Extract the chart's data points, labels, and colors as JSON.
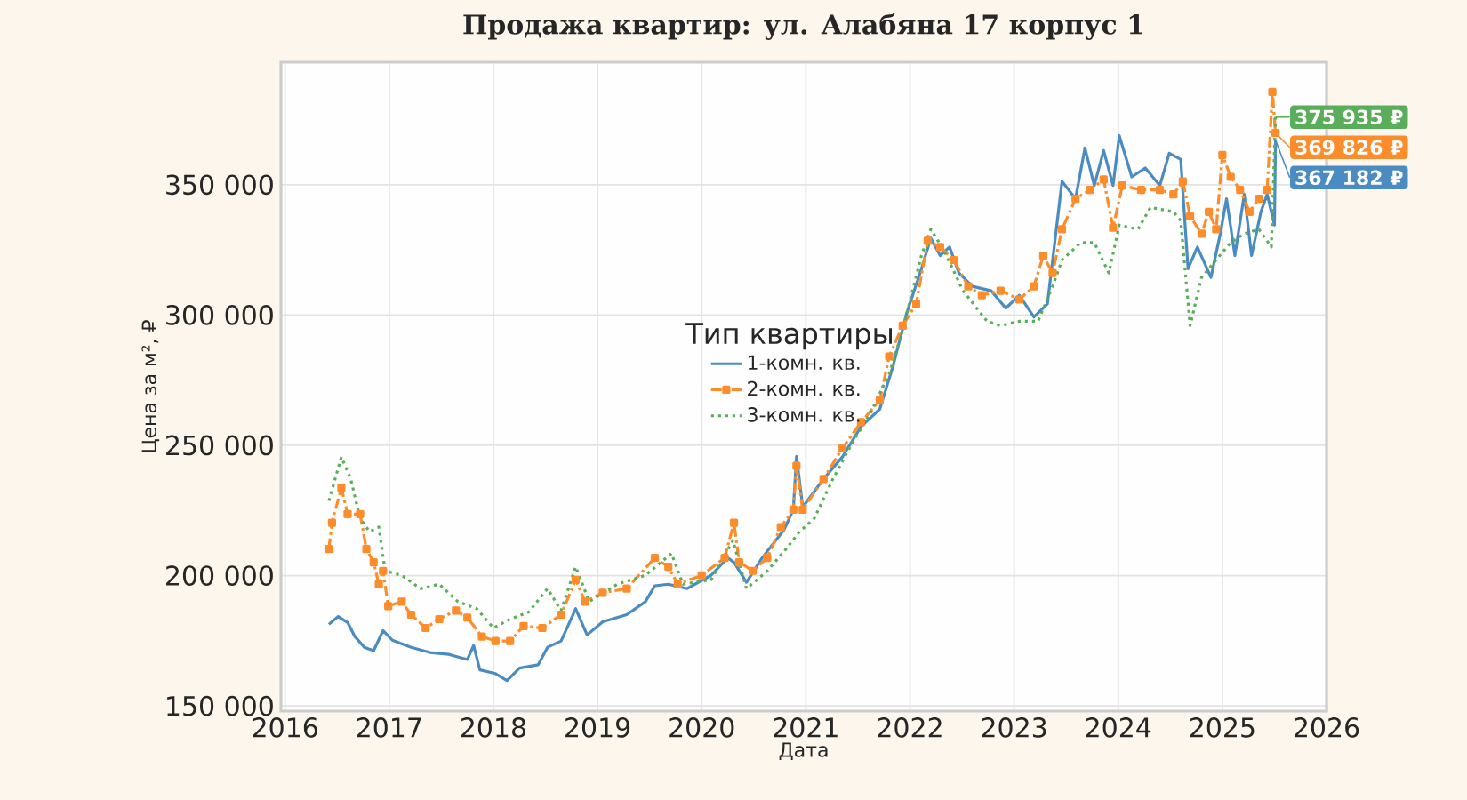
{
  "chart_data": {
    "type": "line",
    "title": "Продажа квартир: ул. Алабяна 17 корпус 1",
    "xlabel": "Дата",
    "ylabel": "Цена за м², ₽",
    "legend_title": "Тип квартиры",
    "legend": "center",
    "grid": true,
    "xlim": [
      2015.96,
      2026.0
    ],
    "xticks": [
      2016,
      2017,
      2018,
      2019,
      2020,
      2021,
      2022,
      2023,
      2024,
      2025,
      2026
    ],
    "ylim": [
      148000,
      397000
    ],
    "yticks": [
      {
        "value": 150000,
        "label": "150 000"
      },
      {
        "value": 200000,
        "label": "200 000"
      },
      {
        "value": 250000,
        "label": "250 000"
      },
      {
        "value": 300000,
        "label": "300 000"
      },
      {
        "value": 350000,
        "label": "350 000"
      }
    ],
    "series": [
      {
        "name": "1-комн. кв.",
        "color": "#4a8cc2",
        "line_style": "solid",
        "marker": "none",
        "x": [
          2016.42,
          2016.51,
          2016.6,
          2016.67,
          2016.76,
          2016.85,
          2016.94,
          2017.03,
          2017.21,
          2017.39,
          2017.57,
          2017.75,
          2017.81,
          2017.87,
          2018.02,
          2018.13,
          2018.25,
          2018.43,
          2018.52,
          2018.65,
          2018.79,
          2018.9,
          2019.05,
          2019.28,
          2019.46,
          2019.55,
          2019.68,
          2019.86,
          2020.09,
          2020.25,
          2020.31,
          2020.43,
          2020.58,
          2020.79,
          2020.88,
          2020.91,
          2020.97,
          2021.17,
          2021.35,
          2021.53,
          2021.71,
          2021.84,
          2021.97,
          2022.11,
          2022.2,
          2022.29,
          2022.38,
          2022.47,
          2022.6,
          2022.78,
          2022.92,
          2023.05,
          2023.19,
          2023.32,
          2023.41,
          2023.46,
          2023.59,
          2023.68,
          2023.77,
          2023.86,
          2023.95,
          2024.01,
          2024.13,
          2024.26,
          2024.4,
          2024.49,
          2024.6,
          2024.67,
          2024.76,
          2024.89,
          2024.98,
          2025.04,
          2025.12,
          2025.21,
          2025.28,
          2025.37,
          2025.43,
          2025.5,
          2025.51
        ],
        "values": [
          181300,
          184300,
          182000,
          176600,
          172500,
          171200,
          178900,
          175200,
          172500,
          170500,
          169800,
          167800,
          173200,
          163800,
          162400,
          159700,
          164500,
          165800,
          172500,
          174900,
          187300,
          177200,
          182300,
          185000,
          190000,
          196100,
          196700,
          195000,
          200100,
          206800,
          205100,
          197400,
          206800,
          217600,
          225300,
          245800,
          226300,
          237100,
          245500,
          257200,
          263900,
          280800,
          300900,
          317700,
          329500,
          322800,
          326100,
          316100,
          311000,
          309300,
          302600,
          307600,
          299200,
          304300,
          334500,
          351300,
          344600,
          364100,
          349700,
          363100,
          349700,
          368800,
          353000,
          356400,
          349700,
          362100,
          359700,
          317700,
          326100,
          314400,
          331200,
          344600,
          322800,
          346300,
          322800,
          339600,
          346300,
          334500,
          367182
        ]
      },
      {
        "name": "2-комн. кв.",
        "color": "#fd8c2a",
        "line_style": "dashed",
        "marker": "square",
        "x": [
          2016.42,
          2016.45,
          2016.54,
          2016.6,
          2016.72,
          2016.78,
          2016.85,
          2016.9,
          2016.94,
          2016.99,
          2017.12,
          2017.21,
          2017.35,
          2017.48,
          2017.64,
          2017.75,
          2017.89,
          2018.02,
          2018.16,
          2018.29,
          2018.47,
          2018.65,
          2018.79,
          2018.88,
          2019.05,
          2019.28,
          2019.55,
          2019.68,
          2019.77,
          2020.0,
          2020.22,
          2020.31,
          2020.36,
          2020.49,
          2020.63,
          2020.76,
          2020.88,
          2020.91,
          2020.97,
          2021.17,
          2021.35,
          2021.53,
          2021.71,
          2021.8,
          2021.93,
          2022.06,
          2022.17,
          2022.29,
          2022.42,
          2022.56,
          2022.69,
          2022.87,
          2023.05,
          2023.19,
          2023.28,
          2023.37,
          2023.46,
          2023.59,
          2023.73,
          2023.86,
          2023.95,
          2024.04,
          2024.22,
          2024.4,
          2024.53,
          2024.62,
          2024.69,
          2024.8,
          2024.87,
          2024.94,
          2025.0,
          2025.08,
          2025.17,
          2025.26,
          2025.35,
          2025.43,
          2025.48,
          2025.51
        ],
        "values": [
          210200,
          220300,
          233700,
          223600,
          223600,
          210200,
          205100,
          196700,
          201800,
          188300,
          190000,
          185000,
          179900,
          183300,
          186600,
          183900,
          176600,
          174900,
          174900,
          180600,
          179900,
          185000,
          198400,
          190000,
          193400,
          195000,
          206800,
          203400,
          196700,
          200100,
          206800,
          220300,
          205100,
          201800,
          206800,
          218600,
          225300,
          242100,
          225300,
          237100,
          248800,
          258900,
          267300,
          284100,
          295900,
          304300,
          328500,
          326100,
          321100,
          311000,
          307600,
          309300,
          306000,
          311000,
          322800,
          316100,
          332900,
          344600,
          348000,
          352000,
          333500,
          349700,
          348000,
          348000,
          346300,
          351300,
          337900,
          331200,
          339600,
          332900,
          361400,
          353000,
          348000,
          339600,
          344600,
          348000,
          385600,
          369826
        ]
      },
      {
        "name": "3-комн. кв.",
        "color": "#5aae5a",
        "line_style": "dotted",
        "marker": "none",
        "x": [
          2016.42,
          2016.54,
          2016.63,
          2016.72,
          2016.81,
          2016.9,
          2016.96,
          2017.12,
          2017.3,
          2017.48,
          2017.66,
          2017.84,
          2018.0,
          2018.16,
          2018.34,
          2018.52,
          2018.65,
          2018.79,
          2018.92,
          2019.19,
          2019.46,
          2019.71,
          2019.82,
          2020.09,
          2020.3,
          2020.43,
          2020.63,
          2020.81,
          2020.94,
          2021.08,
          2021.26,
          2021.44,
          2021.62,
          2021.8,
          2021.93,
          2022.11,
          2022.2,
          2022.33,
          2022.51,
          2022.74,
          2022.87,
          2023.05,
          2023.23,
          2023.37,
          2023.46,
          2023.64,
          2023.77,
          2023.91,
          2024.01,
          2024.19,
          2024.31,
          2024.53,
          2024.6,
          2024.69,
          2024.8,
          2024.94,
          2025.08,
          2025.21,
          2025.35,
          2025.47,
          2025.51
        ],
        "values": [
          228700,
          245500,
          237100,
          221900,
          216900,
          218600,
          201800,
          200100,
          195000,
          196700,
          190000,
          187300,
          179900,
          183300,
          186000,
          195000,
          186600,
          203400,
          190000,
          196700,
          200100,
          208500,
          196700,
          198400,
          213500,
          195000,
          201800,
          210200,
          216900,
          221900,
          237100,
          250500,
          262300,
          277400,
          294200,
          322800,
          332900,
          324500,
          309300,
          297600,
          295900,
          297600,
          297600,
          311000,
          321100,
          327800,
          327800,
          316100,
          334500,
          332900,
          341300,
          339600,
          336200,
          295900,
          314400,
          321100,
          327800,
          331200,
          332900,
          326100,
          375935
        ]
      }
    ],
    "annotations": [
      "367 182 ₽",
      "369 826 ₽",
      "375 935 ₽"
    ]
  }
}
